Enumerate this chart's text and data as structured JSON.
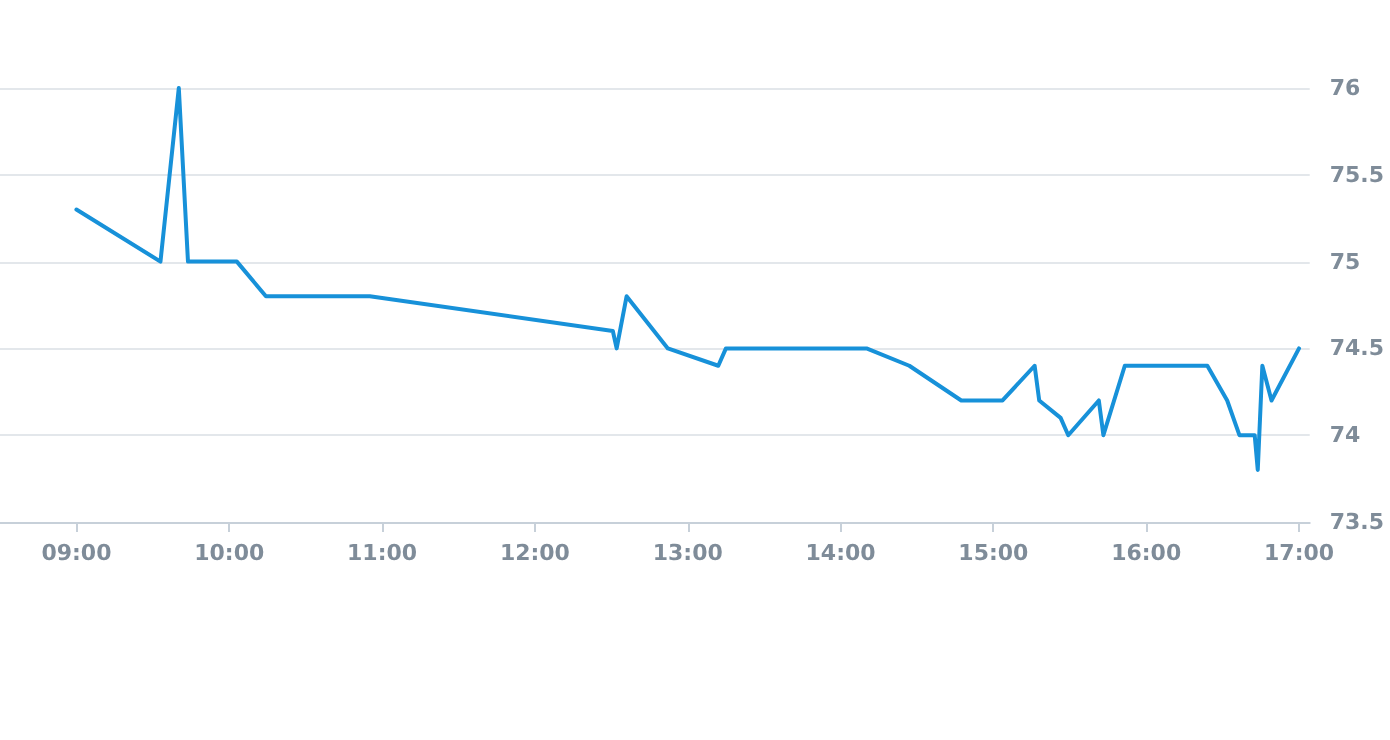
{
  "chart_data": {
    "type": "line",
    "x": [
      9.0,
      9.55,
      9.67,
      9.73,
      10.05,
      10.24,
      10.92,
      12.51,
      12.535,
      12.6,
      12.87,
      13.2,
      13.25,
      14.17,
      14.45,
      14.79,
      15.06,
      15.27,
      15.3,
      15.44,
      15.49,
      15.69,
      15.72,
      15.86,
      16.4,
      16.53,
      16.61,
      16.71,
      16.73,
      16.76,
      16.82,
      17.0
    ],
    "series": [
      {
        "color": "#1791d9",
        "values": [
          75.3,
          75.0,
          76.0,
          75.0,
          75.0,
          74.8,
          74.8,
          74.6,
          74.5,
          74.8,
          74.5,
          74.4,
          74.5,
          74.5,
          74.4,
          74.2,
          74.2,
          74.4,
          74.2,
          74.1,
          74.0,
          74.2,
          74.0,
          74.4,
          74.4,
          74.2,
          74.0,
          74.0,
          73.8,
          74.4,
          74.2,
          74.5
        ]
      }
    ],
    "xlim": [
      8.5,
      17.07
    ],
    "xticks": [
      {
        "value": 9,
        "label": "09:00"
      },
      {
        "value": 10,
        "label": "10:00"
      },
      {
        "value": 11,
        "label": "11:00"
      },
      {
        "value": 12,
        "label": "12:00"
      },
      {
        "value": 13,
        "label": "13:00"
      },
      {
        "value": 14,
        "label": "14:00"
      },
      {
        "value": 15,
        "label": "15:00"
      },
      {
        "value": 16,
        "label": "16:00"
      },
      {
        "value": 17,
        "label": "17:00"
      }
    ],
    "ylim": [
      73.5,
      76
    ],
    "yticks": [
      73.5,
      74,
      74.5,
      75,
      75.5,
      76
    ],
    "grid": "y",
    "marker": "none",
    "line_style": "solid"
  }
}
